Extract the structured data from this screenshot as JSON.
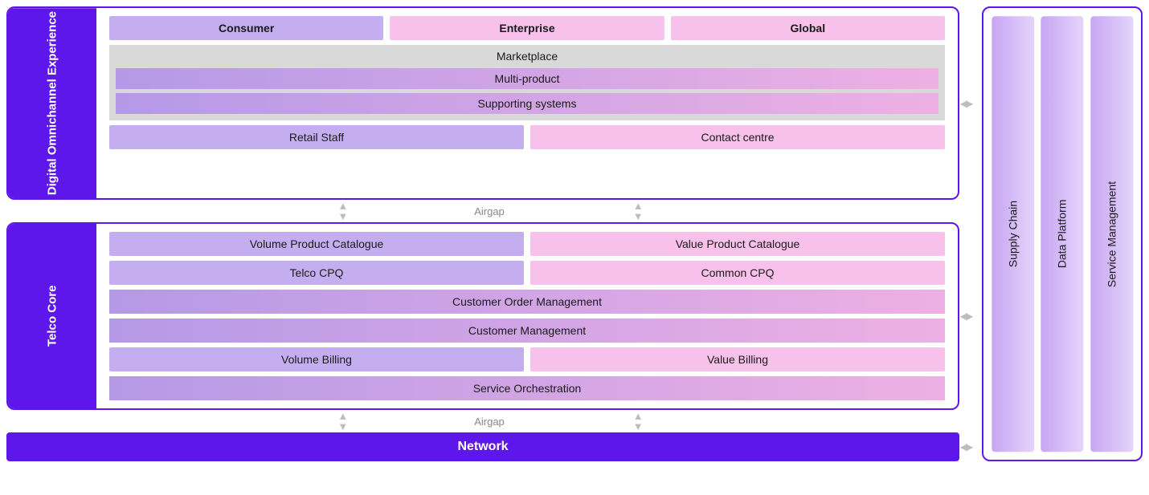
{
  "colors": {
    "brand_purple": "#5e17eb",
    "lilac": "#c5aef0",
    "pink": "#f7c1eb",
    "gray_box": "#d9d9d9",
    "grad_left": "#b599e6",
    "grad_right": "#eeb0e4",
    "vgrad_left": "#e4d4fb",
    "vgrad_right": "#c7a6f3",
    "text": "#1a1a1a",
    "white": "#ffffff"
  },
  "sections": {
    "digital": {
      "tab": "Digital Omnichannel Experience",
      "top_row": [
        "Consumer",
        "Enterprise",
        "Global"
      ],
      "top_row_colors": [
        "#c5aef0",
        "#f7c1eb",
        "#f7c1eb"
      ],
      "gray": {
        "title": "Marketplace",
        "bars": [
          "Multi-product",
          "Supporting systems"
        ]
      },
      "bottom_row": {
        "labels": [
          "Retail Staff",
          "Contact centre"
        ],
        "colors": [
          "#c5aef0",
          "#f7c1eb"
        ]
      }
    },
    "airgap_label": "Airgap",
    "telco": {
      "tab": "Telco Core",
      "rows": [
        {
          "type": "split",
          "left": "Volume Product Catalogue",
          "right": "Value Product Catalogue"
        },
        {
          "type": "split",
          "left": "Telco CPQ",
          "right": "Common CPQ"
        },
        {
          "type": "full",
          "label": "Customer Order Management"
        },
        {
          "type": "full",
          "label": "Customer Management"
        },
        {
          "type": "split",
          "left": "Volume Billing",
          "right": "Value Billing"
        },
        {
          "type": "full",
          "label": "Service Orchestration"
        }
      ],
      "split_colors": {
        "left": "#c5aef0",
        "right": "#f7c1eb"
      }
    },
    "network": {
      "label": "Network",
      "bg": "#5e17eb"
    }
  },
  "side": {
    "pillars": [
      "Supply Chain",
      "Data Platform",
      "Service Management"
    ]
  }
}
